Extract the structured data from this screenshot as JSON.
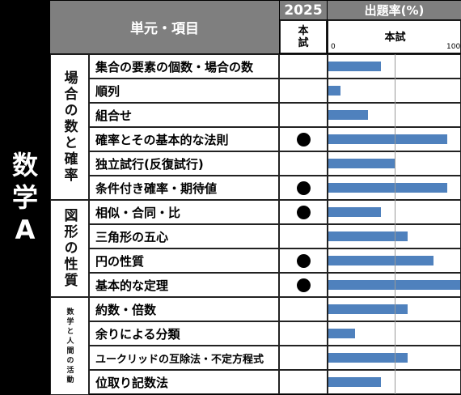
{
  "subject": [
    "数",
    "学",
    "A"
  ],
  "header": {
    "unit_item": "単元・項目",
    "year": "2025",
    "exam_top": "本",
    "exam_bottom": "試",
    "rate_title": "出題率(%)",
    "rate_sub": "本試",
    "tick_min": "0",
    "tick_max": "100"
  },
  "categories": [
    {
      "label": "場合の数と確率"
    },
    {
      "label": "図形の性質"
    },
    {
      "label": "数学と人間の活動"
    }
  ],
  "rows": [
    {
      "label": "集合の要素の個数・場合の数",
      "exam2025": false
    },
    {
      "label": "順列",
      "exam2025": false
    },
    {
      "label": "組合せ",
      "exam2025": false
    },
    {
      "label": "確率とその基本的な法則",
      "exam2025": true
    },
    {
      "label": "独立試行(反復試行)",
      "exam2025": false
    },
    {
      "label": "条件付き確率・期待値",
      "exam2025": true
    },
    {
      "label": "相似・合同・比",
      "exam2025": true
    },
    {
      "label": "三角形の五心",
      "exam2025": false
    },
    {
      "label": "円の性質",
      "exam2025": true
    },
    {
      "label": "基本的な定理",
      "exam2025": true
    },
    {
      "label": "約数・倍数",
      "exam2025": false
    },
    {
      "label": "余りによる分類",
      "exam2025": false
    },
    {
      "label": "ユークリッドの互除法・不定方程式",
      "exam2025": false
    },
    {
      "label": "位取り記数法",
      "exam2025": false
    }
  ],
  "chart_data": {
    "type": "bar",
    "categories": [
      "集合の要素の個数・場合の数",
      "順列",
      "組合せ",
      "確率とその基本的な法則",
      "独立試行(反復試行)",
      "条件付き確率・期待値",
      "相似・合同・比",
      "三角形の五心",
      "円の性質",
      "基本的な定理",
      "約数・倍数",
      "余りによる分類",
      "ユークリッドの互除法・不定方程式",
      "位取り記数法"
    ],
    "values": [
      40,
      9,
      30,
      90,
      50,
      90,
      40,
      60,
      80,
      100,
      60,
      20,
      60,
      40
    ],
    "title": "出題率(%)",
    "xlabel": "本試",
    "xlim": [
      0,
      100
    ],
    "orientation": "horizontal",
    "colors": {
      "bar": "#4f81bd",
      "header": "#7f7f7f"
    }
  }
}
